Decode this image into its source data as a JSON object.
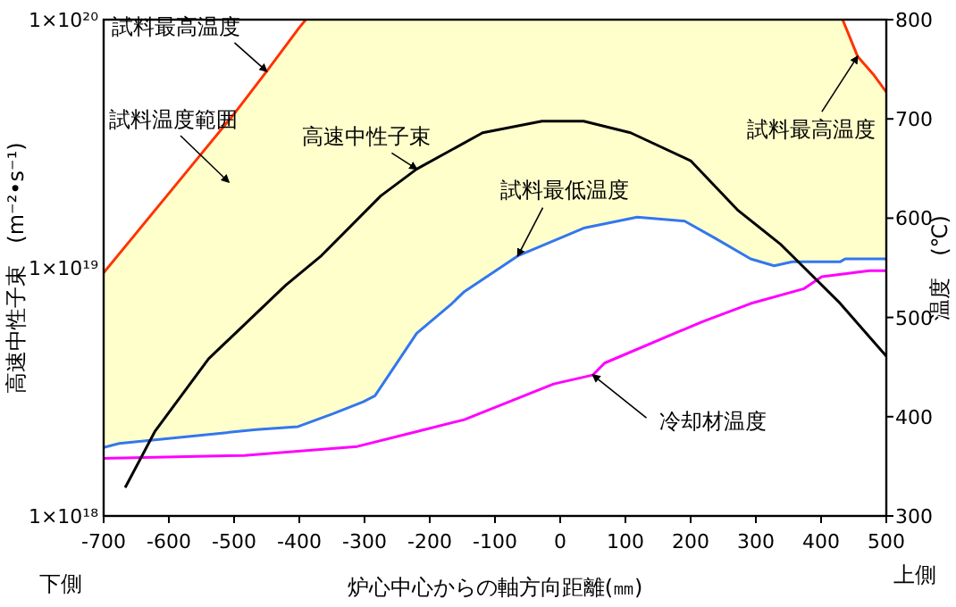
{
  "chart_data": {
    "type": "line",
    "xlabel": "炉心中心からの軸方向距離(㎜)",
    "ylabel": "高速中性子束　(m⁻²•s⁻¹)",
    "y2label": "温度　(℃)",
    "xlim": [
      -700,
      500
    ],
    "xticks": [
      -700,
      -600,
      -500,
      -400,
      -300,
      -200,
      -100,
      0,
      100,
      200,
      300,
      400,
      500
    ],
    "ylim": [
      1e+18,
      1e+20
    ],
    "yticks": [
      {
        "value": 1e+18,
        "label": "1×10¹⁸"
      },
      {
        "value": 1e+19,
        "label": "1×10¹⁹"
      },
      {
        "value": 1e+20,
        "label": "1×10²⁰"
      }
    ],
    "log": "y",
    "y2lim": [
      300,
      800
    ],
    "y2ticks": [
      300,
      400,
      500,
      600,
      700,
      800
    ],
    "grid": false,
    "legend": false,
    "marker": "none",
    "line_style": "solid",
    "series": [
      {
        "name": "試料最高温度",
        "color": "#ff3300",
        "axis": "y2",
        "x": [
          -700,
          -650,
          -600,
          -550,
          -500,
          -450,
          -400,
          -390,
          0,
          433,
          456,
          480,
          500
        ],
        "values": [
          545,
          585,
          625,
          665,
          705,
          748,
          792,
          800,
          null,
          800,
          763,
          745,
          727
        ]
      },
      {
        "name": "試料最低温度",
        "color": "#3377ee",
        "axis": "y2",
        "x": [
          -700,
          -676,
          -466,
          -402,
          -348,
          -302,
          -284,
          -220,
          -166,
          -147,
          -65,
          36,
          118,
          191,
          237,
          292,
          328,
          356,
          429,
          437,
          500
        ],
        "values": [
          369,
          373,
          387,
          390,
          403,
          415,
          421,
          484,
          514,
          526,
          562,
          590,
          601,
          597,
          580,
          559,
          552,
          556,
          556,
          559,
          559
        ]
      },
      {
        "name": "冷却材温度",
        "color": "#ff00ff",
        "axis": "y2",
        "x": [
          -700,
          -484,
          -311,
          -220,
          -147,
          -10,
          50,
          68,
          219,
          292,
          374,
          401,
          474,
          500
        ],
        "values": [
          358,
          361,
          370,
          385,
          397,
          433,
          442,
          454,
          496,
          514,
          529,
          541,
          547,
          547
        ]
      },
      {
        "name": "高速中性子束",
        "color": "#000000",
        "x": [
          -667,
          -621,
          -539,
          -421,
          -366,
          -275,
          -220,
          -119,
          -28,
          36,
          108,
          200,
          273,
          337,
          429,
          500
        ],
        "values": [
          1.3e+18,
          2.2e+18,
          4.3e+18,
          8.5e+18,
          1.12e+19,
          1.95e+19,
          2.5e+19,
          3.5e+19,
          3.9e+19,
          3.9e+19,
          3.5e+19,
          2.7e+19,
          1.7e+19,
          1.25e+19,
          7.2e+18,
          4.4e+18
        ]
      }
    ],
    "annotations": [
      "試料温度範囲",
      "下側",
      "上側"
    ]
  }
}
